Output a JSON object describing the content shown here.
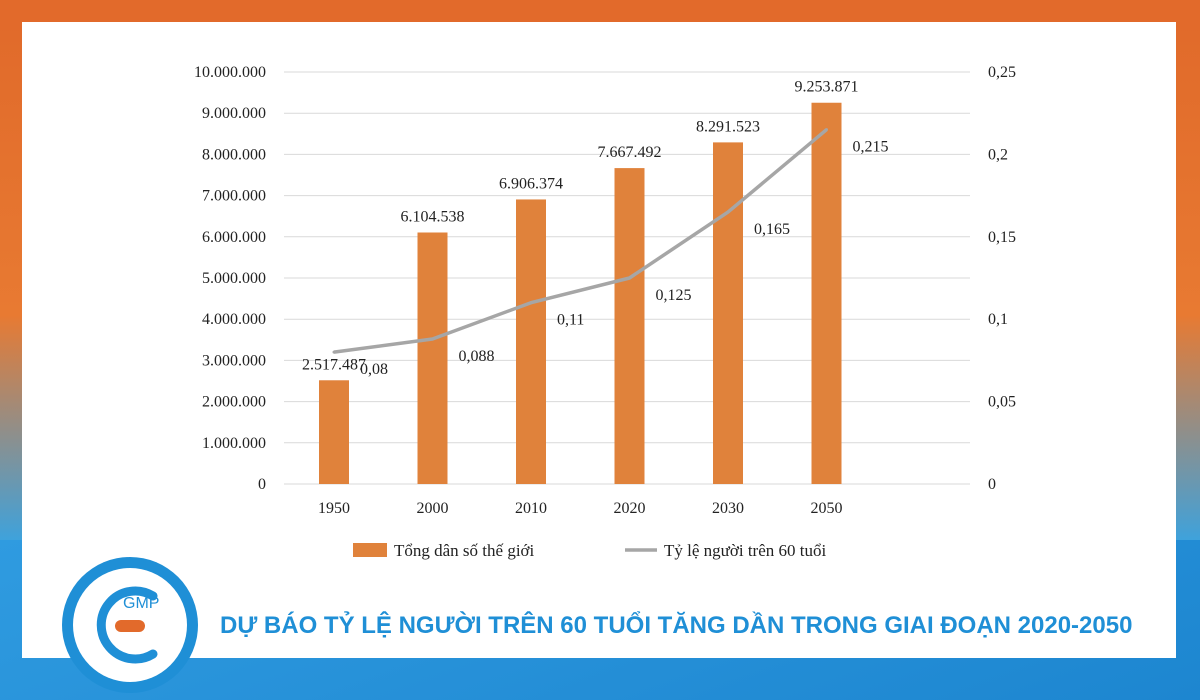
{
  "banner": {
    "title": "DỰ BÁO TỶ LỆ NGƯỜI TRÊN 60 TUỔI TĂNG DẦN TRONG GIAI ĐOẠN 2020-2050"
  },
  "logo": {
    "text": "GMP",
    "icon": "gmp-logo-icon"
  },
  "colors": {
    "bar": "#e0823b",
    "line": "#a6a6a6",
    "accent_blue": "#1f8fd6",
    "accent_orange": "#e26a2b"
  },
  "chart_data": {
    "type": "bar",
    "categories": [
      "1950",
      "2000",
      "2010",
      "2020",
      "2030",
      "2050"
    ],
    "series": [
      {
        "name": "Tổng dân số thế giới",
        "type": "bar",
        "axis": "left",
        "values": [
          2517487,
          6104538,
          6906374,
          7667492,
          8291523,
          9253871
        ],
        "labels": [
          "2.517.487",
          "6.104.538",
          "6.906.374",
          "7.667.492",
          "8.291.523",
          "9.253.871"
        ]
      },
      {
        "name": "Tỷ lệ người trên 60 tuổi",
        "type": "line",
        "axis": "right",
        "values": [
          0.08,
          0.088,
          0.11,
          0.125,
          0.165,
          0.215
        ],
        "labels": [
          "0,08",
          "0,088",
          "0,11",
          "0,125",
          "0,165",
          "0,215"
        ]
      }
    ],
    "left_axis": {
      "ylim": [
        0,
        10000000
      ],
      "ticks": [
        "0",
        "1.000.000",
        "2.000.000",
        "3.000.000",
        "4.000.000",
        "5.000.000",
        "6.000.000",
        "7.000.000",
        "8.000.000",
        "9.000.000",
        "10.000.000"
      ]
    },
    "right_axis": {
      "ylim": [
        0,
        0.25
      ],
      "ticks": [
        "0",
        "0,05",
        "0,1",
        "0,15",
        "0,2",
        "0,25"
      ]
    },
    "grid": true,
    "legend_position": "bottom"
  }
}
